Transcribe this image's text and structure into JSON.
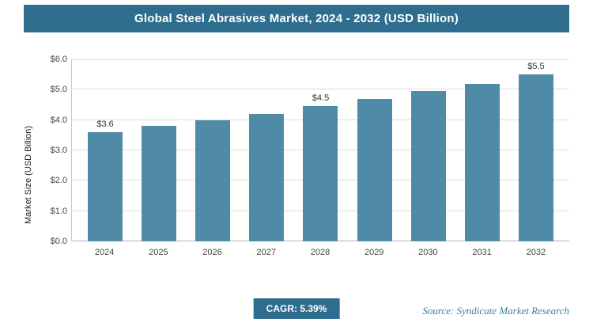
{
  "chart_data": {
    "type": "bar",
    "title": "Global Steel Abrasives Market, 2024 - 2032 (USD Billion)",
    "ylabel": "Market Size (USD Billion)",
    "categories": [
      "2024",
      "2025",
      "2026",
      "2027",
      "2028",
      "2029",
      "2030",
      "2031",
      "2032"
    ],
    "values": [
      3.6,
      3.8,
      4.0,
      4.2,
      4.45,
      4.7,
      4.95,
      5.2,
      5.5
    ],
    "data_labels": {
      "2024": "$3.6",
      "2028": "$4.5",
      "2032": "$5.5"
    },
    "yticks": [
      "$0.0",
      "$1.0",
      "$2.0",
      "$3.0",
      "$4.0",
      "$5.0",
      "$6.0"
    ],
    "ylim": [
      0,
      6
    ],
    "grid": true,
    "legend": "none",
    "bar_color": "#4f8ba6"
  },
  "footer": {
    "cagr_label": "CAGR: 5.39%",
    "source": "Source: Syndicate Market Research"
  }
}
